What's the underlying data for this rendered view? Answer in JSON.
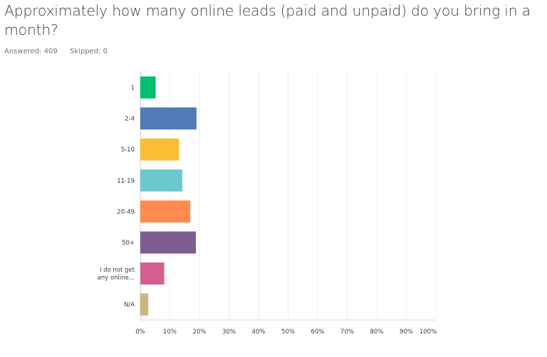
{
  "header": {
    "question": "Approximately how many online leads (paid and unpaid) do you bring in a month?",
    "answered": "Answered: 409",
    "skipped": "Skipped: 0"
  },
  "chart_data": {
    "type": "bar",
    "orientation": "horizontal",
    "categories": [
      "1",
      "2-4",
      "5-10",
      "11-19",
      "20-49",
      "50+",
      "I do not get|any online...",
      "N/A"
    ],
    "values": [
      5.2,
      19.0,
      13.1,
      14.2,
      16.9,
      18.8,
      8.1,
      2.7
    ],
    "colors": [
      "#00bf6f",
      "#507cb6",
      "#f9be34",
      "#6bc8cd",
      "#ff8b4f",
      "#7d5e90",
      "#d25f90",
      "#c9b77d"
    ],
    "xlim": [
      0,
      100
    ],
    "xticks": [
      "0%",
      "10%",
      "20%",
      "30%",
      "40%",
      "50%",
      "60%",
      "70%",
      "80%",
      "90%",
      "100%"
    ],
    "grid": true,
    "title": "",
    "xlabel": "",
    "ylabel": ""
  }
}
